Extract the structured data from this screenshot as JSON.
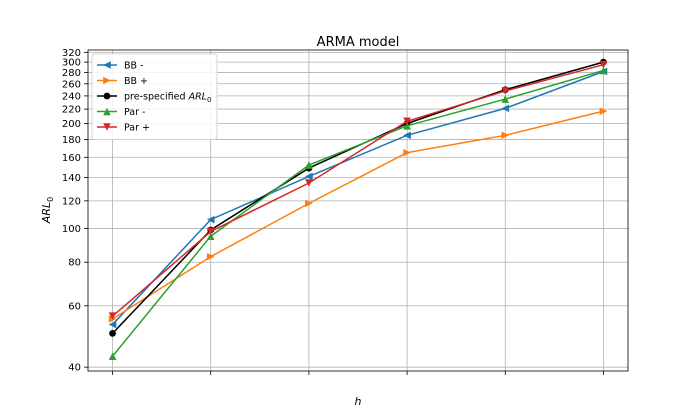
{
  "chart_data": {
    "type": "line",
    "title": "ARMA model",
    "xlabel": "h",
    "ylabel_main": "ARL",
    "ylabel_sub": "0",
    "yscale": "log",
    "ylim": [
      39,
      325
    ],
    "yticks": [
      40,
      60,
      80,
      100,
      120,
      140,
      160,
      180,
      200,
      220,
      240,
      260,
      280,
      300,
      320
    ],
    "x": [
      1,
      2,
      3,
      4,
      5,
      6
    ],
    "xlim": [
      0.75,
      6.25
    ],
    "xtick_labels": [],
    "grid": true,
    "legend_position": "top-left",
    "series": [
      {
        "name": "BB -",
        "name_sub": "",
        "color": "#1f77b4",
        "marker": "triangle-left",
        "values": [
          53,
          106,
          141,
          185,
          221,
          282
        ]
      },
      {
        "name": "BB +",
        "name_sub": "",
        "color": "#ff7f0e",
        "marker": "triangle-right",
        "values": [
          55,
          83,
          118,
          165,
          185,
          217
        ]
      },
      {
        "name": "pre-specified ARL",
        "name_sub": "0",
        "color": "#000000",
        "marker": "circle",
        "values": [
          50,
          99,
          149,
          200,
          250,
          300
        ]
      },
      {
        "name": "Par -",
        "name_sub": "",
        "color": "#2ca02c",
        "marker": "triangle-up",
        "values": [
          43,
          95,
          152,
          197,
          235,
          284
        ]
      },
      {
        "name": "Par +",
        "name_sub": "",
        "color": "#d62728",
        "marker": "triangle-down",
        "values": [
          56,
          98,
          135,
          203,
          248,
          295
        ]
      }
    ]
  }
}
